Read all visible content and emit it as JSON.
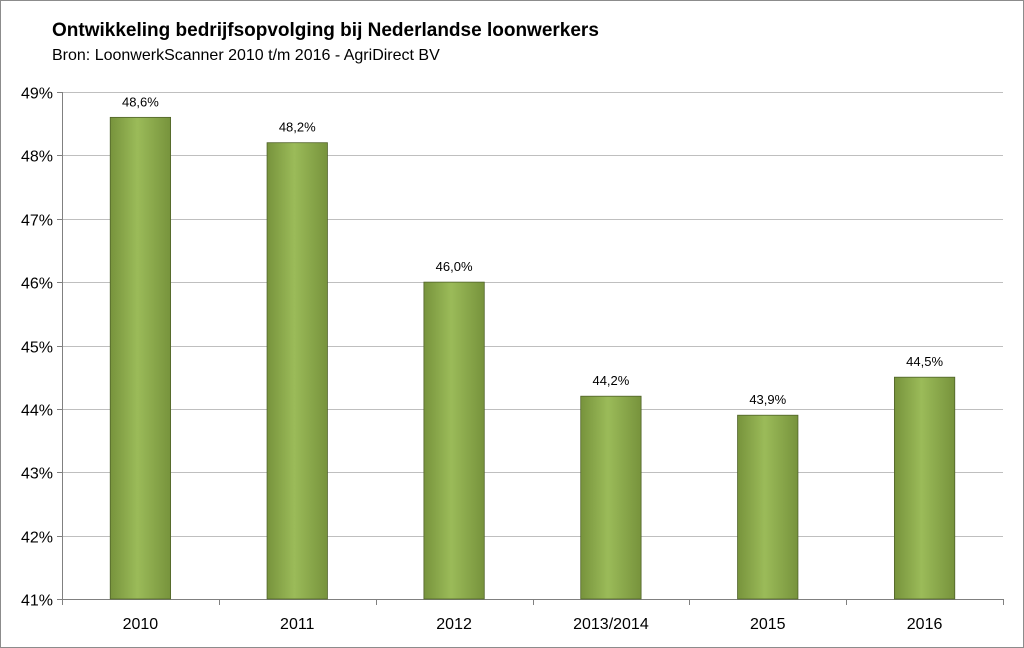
{
  "chart": {
    "title": "Ontwikkeling bedrijfsopvolging bij Nederlandse loonwerkers",
    "subtitle": "Bron: LoonwerkScanner 2010 t/m 2016 - AgriDirect BV"
  },
  "colors": {
    "bar_fill": "#77933C",
    "bar_highlight": "#9BBB59",
    "bar_edge": "#4F6228",
    "gridline": "#bfbfbf",
    "axis": "#808080",
    "frame": "#8c8c8c"
  },
  "chart_data": {
    "type": "bar",
    "title": "Ontwikkeling bedrijfsopvolging bij Nederlandse loonwerkers",
    "subtitle": "Bron: LoonwerkScanner 2010 t/m 2016 - AgriDirect BV",
    "categories": [
      "2010",
      "2011",
      "2012",
      "2013/2014",
      "2015",
      "2016"
    ],
    "values": [
      48.6,
      48.2,
      46.0,
      44.2,
      43.9,
      44.5
    ],
    "data_labels": [
      "48,6%",
      "48,2%",
      "46,0%",
      "44,2%",
      "43,9%",
      "44,5%"
    ],
    "ylim": [
      41,
      49
    ],
    "yticks": [
      41,
      42,
      43,
      44,
      45,
      46,
      47,
      48,
      49
    ],
    "ytick_labels": [
      "41%",
      "42%",
      "43%",
      "44%",
      "45%",
      "46%",
      "47%",
      "48%",
      "49%"
    ],
    "xlabel": "",
    "ylabel": "",
    "grid": true,
    "legend": "none"
  }
}
